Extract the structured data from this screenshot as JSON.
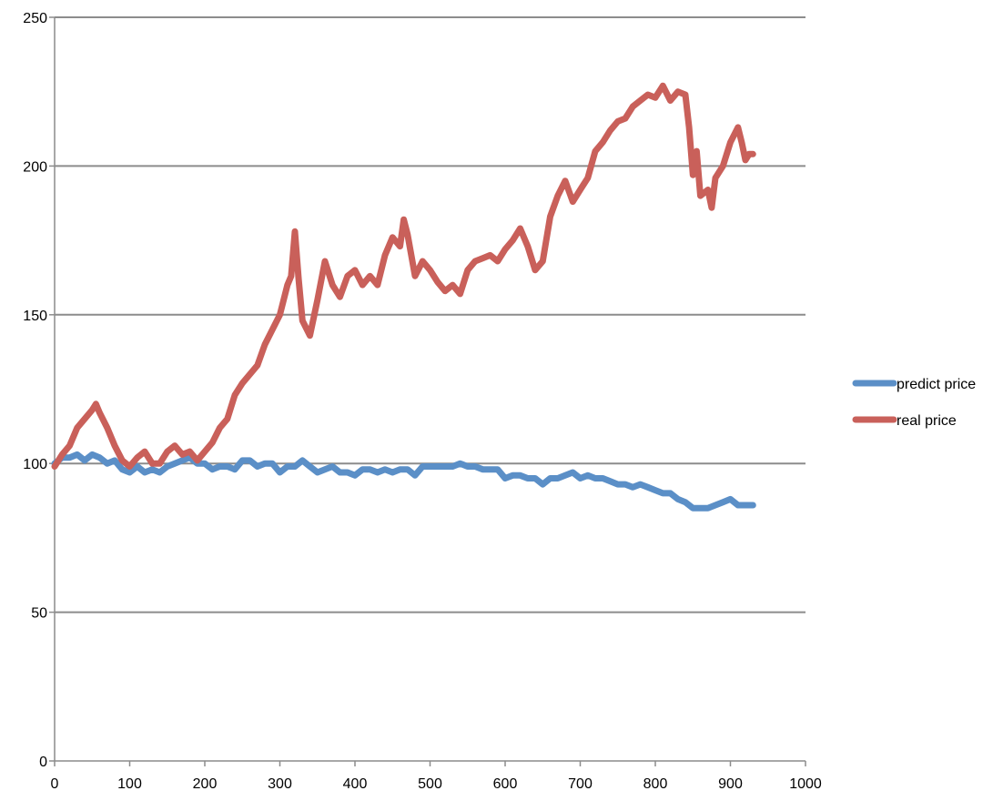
{
  "chart_data": {
    "type": "line",
    "title": "",
    "xlabel": "",
    "ylabel": "",
    "xlim": [
      0,
      1000
    ],
    "ylim": [
      0,
      250
    ],
    "x_ticks": [
      0,
      100,
      200,
      300,
      400,
      500,
      600,
      700,
      800,
      900,
      1000
    ],
    "y_ticks": [
      0,
      50,
      100,
      150,
      200,
      250
    ],
    "x_tick_labels": [
      "0",
      "100",
      "200",
      "300",
      "400",
      "500",
      "600",
      "700",
      "800",
      "900",
      "1000"
    ],
    "y_tick_labels": [
      "0",
      "50",
      "100",
      "150",
      "200",
      "250"
    ],
    "grid": "horizontal",
    "legend_position": "right",
    "series": [
      {
        "name": "predict price",
        "color": "#5b8fc7",
        "points": [
          [
            0,
            100
          ],
          [
            10,
            102
          ],
          [
            20,
            102
          ],
          [
            30,
            103
          ],
          [
            40,
            101
          ],
          [
            50,
            103
          ],
          [
            60,
            102
          ],
          [
            70,
            100
          ],
          [
            80,
            101
          ],
          [
            90,
            98
          ],
          [
            100,
            97
          ],
          [
            110,
            99
          ],
          [
            120,
            97
          ],
          [
            130,
            98
          ],
          [
            140,
            97
          ],
          [
            150,
            99
          ],
          [
            160,
            100
          ],
          [
            170,
            101
          ],
          [
            180,
            102
          ],
          [
            190,
            100
          ],
          [
            200,
            100
          ],
          [
            210,
            98
          ],
          [
            220,
            99
          ],
          [
            230,
            99
          ],
          [
            240,
            98
          ],
          [
            250,
            101
          ],
          [
            260,
            101
          ],
          [
            270,
            99
          ],
          [
            280,
            100
          ],
          [
            290,
            100
          ],
          [
            300,
            97
          ],
          [
            310,
            99
          ],
          [
            320,
            99
          ],
          [
            330,
            101
          ],
          [
            340,
            99
          ],
          [
            350,
            97
          ],
          [
            360,
            98
          ],
          [
            370,
            99
          ],
          [
            380,
            97
          ],
          [
            390,
            97
          ],
          [
            400,
            96
          ],
          [
            410,
            98
          ],
          [
            420,
            98
          ],
          [
            430,
            97
          ],
          [
            440,
            98
          ],
          [
            450,
            97
          ],
          [
            460,
            98
          ],
          [
            470,
            98
          ],
          [
            480,
            96
          ],
          [
            490,
            99
          ],
          [
            500,
            99
          ],
          [
            510,
            99
          ],
          [
            520,
            99
          ],
          [
            530,
            99
          ],
          [
            540,
            100
          ],
          [
            550,
            99
          ],
          [
            560,
            99
          ],
          [
            570,
            98
          ],
          [
            580,
            98
          ],
          [
            590,
            98
          ],
          [
            600,
            95
          ],
          [
            610,
            96
          ],
          [
            620,
            96
          ],
          [
            630,
            95
          ],
          [
            640,
            95
          ],
          [
            650,
            93
          ],
          [
            660,
            95
          ],
          [
            670,
            95
          ],
          [
            680,
            96
          ],
          [
            690,
            97
          ],
          [
            700,
            95
          ],
          [
            710,
            96
          ],
          [
            720,
            95
          ],
          [
            730,
            95
          ],
          [
            740,
            94
          ],
          [
            750,
            93
          ],
          [
            760,
            93
          ],
          [
            770,
            92
          ],
          [
            780,
            93
          ],
          [
            790,
            92
          ],
          [
            800,
            91
          ],
          [
            810,
            90
          ],
          [
            820,
            90
          ],
          [
            830,
            88
          ],
          [
            840,
            87
          ],
          [
            850,
            85
          ],
          [
            860,
            85
          ],
          [
            870,
            85
          ],
          [
            880,
            86
          ],
          [
            890,
            87
          ],
          [
            900,
            88
          ],
          [
            910,
            86
          ],
          [
            920,
            86
          ],
          [
            930,
            86
          ]
        ]
      },
      {
        "name": "real price",
        "color": "#c9605a",
        "points": [
          [
            0,
            99
          ],
          [
            10,
            103
          ],
          [
            20,
            106
          ],
          [
            30,
            112
          ],
          [
            40,
            115
          ],
          [
            50,
            118
          ],
          [
            55,
            120
          ],
          [
            60,
            117
          ],
          [
            70,
            112
          ],
          [
            80,
            106
          ],
          [
            90,
            101
          ],
          [
            100,
            99
          ],
          [
            110,
            102
          ],
          [
            120,
            104
          ],
          [
            130,
            100
          ],
          [
            140,
            100
          ],
          [
            150,
            104
          ],
          [
            160,
            106
          ],
          [
            170,
            103
          ],
          [
            180,
            104
          ],
          [
            190,
            101
          ],
          [
            200,
            104
          ],
          [
            210,
            107
          ],
          [
            220,
            112
          ],
          [
            230,
            115
          ],
          [
            240,
            123
          ],
          [
            250,
            127
          ],
          [
            260,
            130
          ],
          [
            270,
            133
          ],
          [
            280,
            140
          ],
          [
            290,
            145
          ],
          [
            300,
            150
          ],
          [
            310,
            160
          ],
          [
            315,
            163
          ],
          [
            320,
            178
          ],
          [
            325,
            162
          ],
          [
            330,
            148
          ],
          [
            340,
            143
          ],
          [
            350,
            155
          ],
          [
            360,
            168
          ],
          [
            370,
            160
          ],
          [
            380,
            156
          ],
          [
            390,
            163
          ],
          [
            400,
            165
          ],
          [
            410,
            160
          ],
          [
            420,
            163
          ],
          [
            430,
            160
          ],
          [
            440,
            170
          ],
          [
            450,
            176
          ],
          [
            460,
            173
          ],
          [
            465,
            182
          ],
          [
            470,
            177
          ],
          [
            480,
            163
          ],
          [
            490,
            168
          ],
          [
            500,
            165
          ],
          [
            510,
            161
          ],
          [
            520,
            158
          ],
          [
            530,
            160
          ],
          [
            540,
            157
          ],
          [
            550,
            165
          ],
          [
            560,
            168
          ],
          [
            570,
            169
          ],
          [
            580,
            170
          ],
          [
            590,
            168
          ],
          [
            600,
            172
          ],
          [
            610,
            175
          ],
          [
            620,
            179
          ],
          [
            630,
            173
          ],
          [
            640,
            165
          ],
          [
            650,
            168
          ],
          [
            660,
            183
          ],
          [
            670,
            190
          ],
          [
            680,
            195
          ],
          [
            690,
            188
          ],
          [
            700,
            192
          ],
          [
            710,
            196
          ],
          [
            720,
            205
          ],
          [
            730,
            208
          ],
          [
            740,
            212
          ],
          [
            750,
            215
          ],
          [
            760,
            216
          ],
          [
            770,
            220
          ],
          [
            780,
            222
          ],
          [
            790,
            224
          ],
          [
            800,
            223
          ],
          [
            810,
            227
          ],
          [
            820,
            222
          ],
          [
            830,
            225
          ],
          [
            840,
            224
          ],
          [
            845,
            213
          ],
          [
            850,
            197
          ],
          [
            855,
            205
          ],
          [
            860,
            190
          ],
          [
            870,
            192
          ],
          [
            875,
            186
          ],
          [
            880,
            196
          ],
          [
            890,
            200
          ],
          [
            900,
            208
          ],
          [
            910,
            213
          ],
          [
            915,
            208
          ],
          [
            920,
            202
          ],
          [
            925,
            204
          ],
          [
            930,
            204
          ]
        ]
      }
    ]
  }
}
